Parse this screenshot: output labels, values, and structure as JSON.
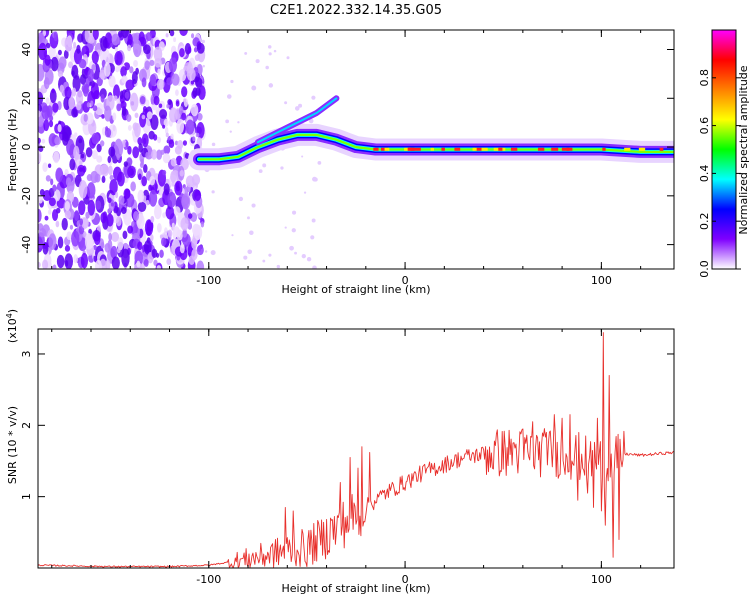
{
  "title": "C2E1.2022.332.14.35.G05",
  "chart_data": [
    {
      "type": "heatmap",
      "name": "spectrogram",
      "xlabel": "Height of straight line (km)",
      "ylabel": "Frequency (Hz)",
      "xlim": [
        -187,
        137
      ],
      "ylim": [
        -50,
        48
      ],
      "x_ticks": [
        -100,
        0,
        100
      ],
      "x_tick_labels": [
        "-100",
        "0",
        "100"
      ],
      "y_ticks": [
        40,
        20,
        0,
        -20,
        -40
      ],
      "y_tick_labels": [
        "40",
        "20",
        "0",
        "-20",
        "-40"
      ],
      "noise_region_x": [
        -187,
        -103
      ],
      "signal_track": [
        {
          "x": -105,
          "f": -5
        },
        {
          "x": -95,
          "f": -5
        },
        {
          "x": -85,
          "f": -4
        },
        {
          "x": -75,
          "f": 0
        },
        {
          "x": -65,
          "f": 3
        },
        {
          "x": -55,
          "f": 5
        },
        {
          "x": -45,
          "f": 5
        },
        {
          "x": -35,
          "f": 3
        },
        {
          "x": -25,
          "f": 0
        },
        {
          "x": -15,
          "f": -1
        },
        {
          "x": 0,
          "f": -1
        },
        {
          "x": 20,
          "f": -1
        },
        {
          "x": 40,
          "f": -1
        },
        {
          "x": 60,
          "f": -1
        },
        {
          "x": 80,
          "f": -1
        },
        {
          "x": 100,
          "f": -1
        },
        {
          "x": 120,
          "f": -2
        },
        {
          "x": 137,
          "f": -2
        }
      ],
      "secondary_track": [
        {
          "x": -75,
          "f": 2
        },
        {
          "x": -65,
          "f": 6
        },
        {
          "x": -55,
          "f": 10
        },
        {
          "x": -45,
          "f": 14
        },
        {
          "x": -35,
          "f": 20
        }
      ],
      "colorbar": {
        "label": "Normalized spectral amplitude",
        "range": [
          0,
          1
        ],
        "ticks": [
          0,
          0.2,
          0.4,
          0.6,
          0.8
        ],
        "tick_labels": [
          "0.0",
          "0.2",
          "0.4",
          "0.6",
          "0.8"
        ],
        "colors": [
          "#ffffff",
          "#7f00ff",
          "#0000ff",
          "#00ffff",
          "#00ff00",
          "#ffff00",
          "#ff8000",
          "#ff0000",
          "#ff00ff"
        ]
      }
    },
    {
      "type": "line",
      "name": "snr",
      "xlabel": "Height of straight line (km)",
      "ylabel": "SNR (10 * v/v)",
      "y_scale_note": "(x10",
      "y_scale_exponent": "4",
      "y_scale_suffix": ")",
      "xlim": [
        -187,
        137
      ],
      "ylim": [
        0,
        3.35
      ],
      "x_ticks": [
        -100,
        0,
        100
      ],
      "x_tick_labels": [
        "-100",
        "0",
        "100"
      ],
      "y_ticks": [
        3,
        2,
        1
      ],
      "y_tick_labels": [
        "3",
        "2",
        "1"
      ],
      "color": "#e8302c",
      "trend": [
        {
          "x": -187,
          "y": 0.04
        },
        {
          "x": -150,
          "y": 0.02
        },
        {
          "x": -120,
          "y": 0.02
        },
        {
          "x": -100,
          "y": 0.04
        },
        {
          "x": -85,
          "y": 0.1
        },
        {
          "x": -70,
          "y": 0.18
        },
        {
          "x": -60,
          "y": 0.25
        },
        {
          "x": -50,
          "y": 0.28
        },
        {
          "x": -40,
          "y": 0.45
        },
        {
          "x": -30,
          "y": 0.65
        },
        {
          "x": -20,
          "y": 0.85
        },
        {
          "x": -10,
          "y": 1.05
        },
        {
          "x": 0,
          "y": 1.2
        },
        {
          "x": 10,
          "y": 1.35
        },
        {
          "x": 20,
          "y": 1.45
        },
        {
          "x": 30,
          "y": 1.55
        },
        {
          "x": 40,
          "y": 1.6
        },
        {
          "x": 50,
          "y": 1.62
        },
        {
          "x": 60,
          "y": 1.63
        },
        {
          "x": 70,
          "y": 1.62
        },
        {
          "x": 80,
          "y": 1.6
        },
        {
          "x": 90,
          "y": 1.55
        },
        {
          "x": 100,
          "y": 1.5
        },
        {
          "x": 105,
          "y": 1.45
        },
        {
          "x": 112,
          "y": 1.6
        },
        {
          "x": 120,
          "y": 1.58
        },
        {
          "x": 137,
          "y": 1.62
        }
      ],
      "spikes": [
        {
          "x": -61,
          "y": 0.85
        },
        {
          "x": -57,
          "y": 0.8
        },
        {
          "x": -38,
          "y": 0.7
        },
        {
          "x": -33,
          "y": 1.2
        },
        {
          "x": -28,
          "y": 1.55
        },
        {
          "x": -24,
          "y": 1.4
        },
        {
          "x": -22,
          "y": 1.7
        },
        {
          "x": -18,
          "y": 1.62
        },
        {
          "x": 55,
          "y": 1.75
        },
        {
          "x": 60,
          "y": 1.95
        },
        {
          "x": 65,
          "y": 2.05
        },
        {
          "x": 72,
          "y": 1.9
        },
        {
          "x": 76,
          "y": 2.15
        },
        {
          "x": 80,
          "y": 2.1
        },
        {
          "x": 84,
          "y": 2.15
        },
        {
          "x": 88,
          "y": 1.95
        },
        {
          "x": 92,
          "y": 1.85
        },
        {
          "x": 98,
          "y": 2.1
        },
        {
          "x": 101,
          "y": 3.3
        },
        {
          "x": 104,
          "y": 2.7
        },
        {
          "x": 106,
          "y": 2.25
        },
        {
          "x": 109,
          "y": 1.85
        }
      ],
      "dips": [
        {
          "x": 88,
          "y": 0.95
        },
        {
          "x": 93,
          "y": 1.05
        },
        {
          "x": 96,
          "y": 0.85
        },
        {
          "x": 100,
          "y": 0.8
        },
        {
          "x": 102,
          "y": 0.6
        },
        {
          "x": 106,
          "y": 0.15
        },
        {
          "x": 109,
          "y": 0.4
        }
      ]
    }
  ]
}
